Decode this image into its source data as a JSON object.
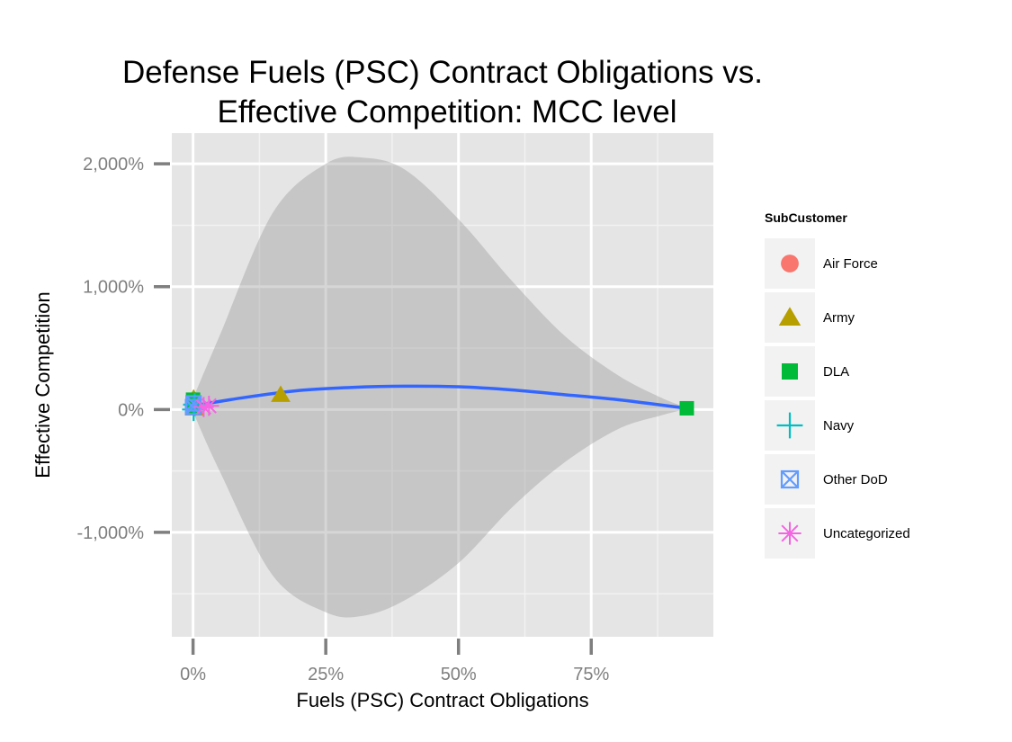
{
  "chart_data": {
    "type": "scatter",
    "title_lines": [
      "Defense Fuels (PSC) Contract Obligations vs.",
      "Effective Competition: MCC level"
    ],
    "xlabel": "Fuels (PSC) Contract Obligations",
    "ylabel": "Effective Competition",
    "xlim": [
      -0.04,
      0.98
    ],
    "ylim": [
      -18.5,
      22.5
    ],
    "x_ticks": [
      {
        "value": 0,
        "label": "0%"
      },
      {
        "value": 0.25,
        "label": "25%"
      },
      {
        "value": 0.5,
        "label": "50%"
      },
      {
        "value": 0.75,
        "label": "75%"
      }
    ],
    "y_ticks": [
      {
        "value": -10,
        "label": "-1,000%"
      },
      {
        "value": 0,
        "label": "0%"
      },
      {
        "value": 10,
        "label": "1,000%"
      },
      {
        "value": 20,
        "label": "2,000%"
      }
    ],
    "grid": true,
    "legend": {
      "title": "SubCustomer",
      "position": "right",
      "entries": [
        {
          "name": "Air Force",
          "shape": "circle",
          "color": "#F8766D"
        },
        {
          "name": "Army",
          "shape": "triangle",
          "color": "#B79F00"
        },
        {
          "name": "DLA",
          "shape": "square",
          "color": "#00BA38"
        },
        {
          "name": "Navy",
          "shape": "plus",
          "color": "#00BFC4"
        },
        {
          "name": "Other DoD",
          "shape": "boxed-x",
          "color": "#619CFF"
        },
        {
          "name": "Uncategorized",
          "shape": "asterisk",
          "color": "#F564E3"
        }
      ]
    },
    "series": [
      {
        "name": "Air Force",
        "points": [
          [
            0.0,
            0.4
          ],
          [
            0.002,
            0.2
          ]
        ]
      },
      {
        "name": "Army",
        "points": [
          [
            0.165,
            1.2
          ],
          [
            0.001,
            0.9
          ],
          [
            0.003,
            0.1
          ]
        ]
      },
      {
        "name": "DLA",
        "points": [
          [
            0.93,
            0.1
          ],
          [
            0.0,
            0.8
          ],
          [
            0.001,
            0.5
          ],
          [
            0.002,
            0.3
          ]
        ]
      },
      {
        "name": "Navy",
        "points": [
          [
            0.001,
            0.0
          ],
          [
            0.003,
            0.4
          ]
        ]
      },
      {
        "name": "Other DoD",
        "points": [
          [
            0.0,
            0.2
          ],
          [
            0.001,
            0.5
          ]
        ]
      },
      {
        "name": "Uncategorized",
        "points": [
          [
            0.03,
            0.3
          ],
          [
            0.02,
            0.2
          ]
        ]
      }
    ],
    "smooth": {
      "color": "#3366FF",
      "band_color": "#999999",
      "fit": [
        [
          0.0,
          0.3
        ],
        [
          0.1,
          1.0
        ],
        [
          0.2,
          1.55
        ],
        [
          0.3,
          1.8
        ],
        [
          0.4,
          1.9
        ],
        [
          0.5,
          1.85
        ],
        [
          0.6,
          1.6
        ],
        [
          0.7,
          1.2
        ],
        [
          0.8,
          0.8
        ],
        [
          0.93,
          0.1
        ]
      ],
      "upper": [
        [
          0.0,
          0.9
        ],
        [
          0.05,
          6.0
        ],
        [
          0.15,
          16.0
        ],
        [
          0.25,
          20.0
        ],
        [
          0.32,
          20.5
        ],
        [
          0.4,
          19.5
        ],
        [
          0.5,
          15.5
        ],
        [
          0.6,
          10.5
        ],
        [
          0.7,
          6.0
        ],
        [
          0.8,
          2.8
        ],
        [
          0.88,
          1.0
        ],
        [
          0.93,
          0.15
        ]
      ],
      "lower": [
        [
          0.0,
          -0.2
        ],
        [
          0.05,
          -5.0
        ],
        [
          0.15,
          -13.5
        ],
        [
          0.25,
          -16.5
        ],
        [
          0.32,
          -16.8
        ],
        [
          0.4,
          -15.5
        ],
        [
          0.5,
          -12.5
        ],
        [
          0.6,
          -8.0
        ],
        [
          0.7,
          -4.3
        ],
        [
          0.8,
          -1.6
        ],
        [
          0.88,
          -0.5
        ],
        [
          0.93,
          0.05
        ]
      ]
    }
  }
}
